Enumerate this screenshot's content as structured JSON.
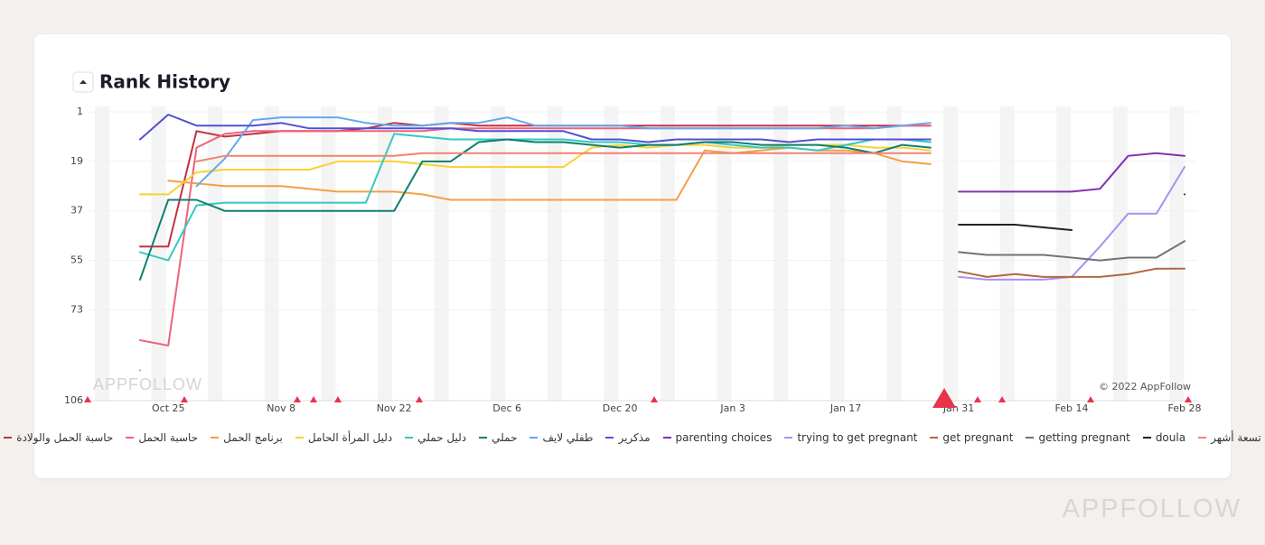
{
  "chart_data": {
    "type": "line",
    "title": "Rank History",
    "watermark": "APPFOLLOW",
    "copyright": "© 2022 AppFollow",
    "brand": "APPFOLLOW",
    "categories": [
      null,
      "Oct 25",
      null,
      null,
      null,
      "Nov 8",
      null,
      null,
      null,
      "Nov 22",
      null,
      null,
      null,
      "Dec 6",
      null,
      null,
      null,
      "Dec 20",
      null,
      null,
      null,
      "Jan 3",
      null,
      null,
      null,
      "Jan 17",
      null,
      null,
      null,
      "Jan 31",
      null,
      null,
      null,
      "Feb 14",
      null,
      null,
      null,
      "Feb 28"
    ],
    "ylim": [
      1,
      106
    ],
    "y_reversed": true,
    "yticks": [
      1,
      19,
      37,
      55,
      73,
      106
    ],
    "grid": true,
    "series": [
      {
        "name": "حاسبة الحمل والولادة",
        "color": "#c3313f",
        "values": [
          50,
          50,
          8,
          10,
          9,
          8,
          8,
          8,
          7,
          5,
          6,
          5,
          6,
          6,
          6,
          6,
          6,
          6,
          6,
          6,
          6,
          6,
          6,
          6,
          6,
          6,
          6,
          6,
          6,
          null,
          null,
          null,
          null,
          null,
          null,
          null,
          null,
          null
        ]
      },
      {
        "name": "حاسبة الحمل",
        "color": "#f2607c",
        "values": [
          84,
          86,
          14,
          9,
          8,
          8,
          8,
          8,
          8,
          8,
          8,
          7,
          7,
          7,
          7,
          7,
          7,
          7,
          7,
          7,
          7,
          7,
          7,
          7,
          7,
          7,
          7,
          6,
          6,
          null,
          null,
          null,
          null,
          null,
          null,
          null,
          null,
          null
        ]
      },
      {
        "name": "برنامج الحمل",
        "color": "#f3a044",
        "values": [
          null,
          26,
          27,
          28,
          28,
          28,
          29,
          30,
          30,
          30,
          31,
          33,
          33,
          33,
          33,
          33,
          33,
          33,
          33,
          33,
          15,
          16,
          15,
          14,
          15,
          15,
          16,
          19,
          20,
          null,
          null,
          null,
          null,
          null,
          null,
          null,
          null,
          null
        ]
      },
      {
        "name": "دليل المرأة الحامل",
        "color": "#f7d232",
        "values": [
          31,
          31,
          23,
          22,
          22,
          22,
          22,
          19,
          19,
          19,
          20,
          21,
          21,
          21,
          21,
          21,
          14,
          13,
          14,
          13,
          13,
          14,
          14,
          13,
          13,
          13,
          14,
          14,
          15,
          null,
          null,
          null,
          null,
          null,
          null,
          null,
          null,
          null
        ]
      },
      {
        "name": "دليل حملي",
        "color": "#33c9c0",
        "values": [
          52,
          55,
          35,
          34,
          34,
          34,
          34,
          34,
          34,
          9,
          10,
          11,
          11,
          11,
          11,
          11,
          12,
          12,
          13,
          13,
          12,
          13,
          14,
          14,
          15,
          13,
          11,
          11,
          12,
          null,
          null,
          null,
          null,
          null,
          null,
          null,
          null,
          null
        ]
      },
      {
        "name": "حملي",
        "color": "#0f7f6e",
        "values": [
          62,
          33,
          33,
          37,
          37,
          37,
          37,
          37,
          37,
          37,
          19,
          19,
          12,
          11,
          12,
          12,
          13,
          14,
          13,
          13,
          12,
          12,
          13,
          13,
          13,
          14,
          16,
          13,
          14,
          null,
          null,
          null,
          null,
          null,
          null,
          null,
          null,
          null
        ]
      },
      {
        "name": "طفلي لايف",
        "color": "#62a9f0",
        "values": [
          95,
          null,
          28,
          18,
          4,
          3,
          3,
          3,
          5,
          6,
          6,
          5,
          5,
          3,
          6,
          6,
          6,
          6,
          7,
          7,
          7,
          7,
          7,
          7,
          7,
          6,
          7,
          6,
          5,
          null,
          null,
          null,
          null,
          null,
          null,
          null,
          null,
          null
        ]
      },
      {
        "name": "مذكرير",
        "color": "#5050d6",
        "values": [
          11,
          2,
          6,
          6,
          6,
          5,
          7,
          7,
          7,
          7,
          7,
          7,
          8,
          8,
          8,
          8,
          11,
          11,
          12,
          11,
          11,
          11,
          11,
          12,
          11,
          11,
          11,
          11,
          11,
          null,
          null,
          null,
          null,
          null,
          null,
          null,
          null,
          null
        ]
      },
      {
        "name": "parenting choices",
        "color": "#8431b2",
        "values": [
          null,
          null,
          null,
          null,
          null,
          null,
          null,
          null,
          null,
          null,
          null,
          null,
          null,
          null,
          null,
          null,
          null,
          null,
          null,
          null,
          null,
          null,
          null,
          null,
          null,
          null,
          null,
          null,
          null,
          30,
          30,
          30,
          30,
          30,
          29,
          17,
          16,
          17
        ]
      },
      {
        "name": "trying to get pregnant",
        "color": "#a991f0",
        "values": [
          null,
          null,
          null,
          null,
          null,
          null,
          null,
          null,
          null,
          null,
          null,
          null,
          null,
          null,
          null,
          null,
          null,
          null,
          null,
          null,
          null,
          null,
          null,
          null,
          null,
          null,
          null,
          null,
          null,
          61,
          62,
          62,
          62,
          61,
          50,
          38,
          38,
          21
        ]
      },
      {
        "name": "get pregnant",
        "color": "#b0693f",
        "values": [
          null,
          null,
          null,
          null,
          null,
          null,
          null,
          null,
          null,
          null,
          null,
          null,
          null,
          null,
          null,
          null,
          null,
          null,
          null,
          null,
          null,
          null,
          null,
          null,
          null,
          null,
          null,
          null,
          null,
          59,
          61,
          60,
          61,
          61,
          61,
          60,
          58,
          58
        ]
      },
      {
        "name": "getting pregnant",
        "color": "#737373",
        "values": [
          null,
          null,
          null,
          null,
          null,
          null,
          null,
          null,
          null,
          null,
          null,
          null,
          null,
          null,
          null,
          null,
          null,
          null,
          null,
          null,
          null,
          null,
          null,
          null,
          null,
          null,
          null,
          null,
          null,
          52,
          53,
          53,
          53,
          54,
          55,
          54,
          54,
          48
        ]
      },
      {
        "name": "doula",
        "color": "#222222",
        "values": [
          null,
          null,
          null,
          null,
          null,
          null,
          null,
          null,
          null,
          null,
          null,
          null,
          null,
          null,
          null,
          null,
          null,
          null,
          null,
          null,
          null,
          null,
          null,
          null,
          null,
          null,
          null,
          null,
          null,
          42,
          42,
          42,
          43,
          44,
          null,
          null,
          null,
          31
        ]
      },
      {
        "name": "تسعة أشهر",
        "color": "#f28272",
        "values": [
          null,
          null,
          19,
          17,
          17,
          17,
          17,
          17,
          17,
          17,
          16,
          16,
          16,
          16,
          16,
          16,
          16,
          16,
          16,
          16,
          16,
          16,
          16,
          16,
          16,
          16,
          16,
          16,
          16,
          null,
          null,
          null,
          null,
          null,
          null,
          null,
          null,
          null
        ]
      }
    ]
  }
}
